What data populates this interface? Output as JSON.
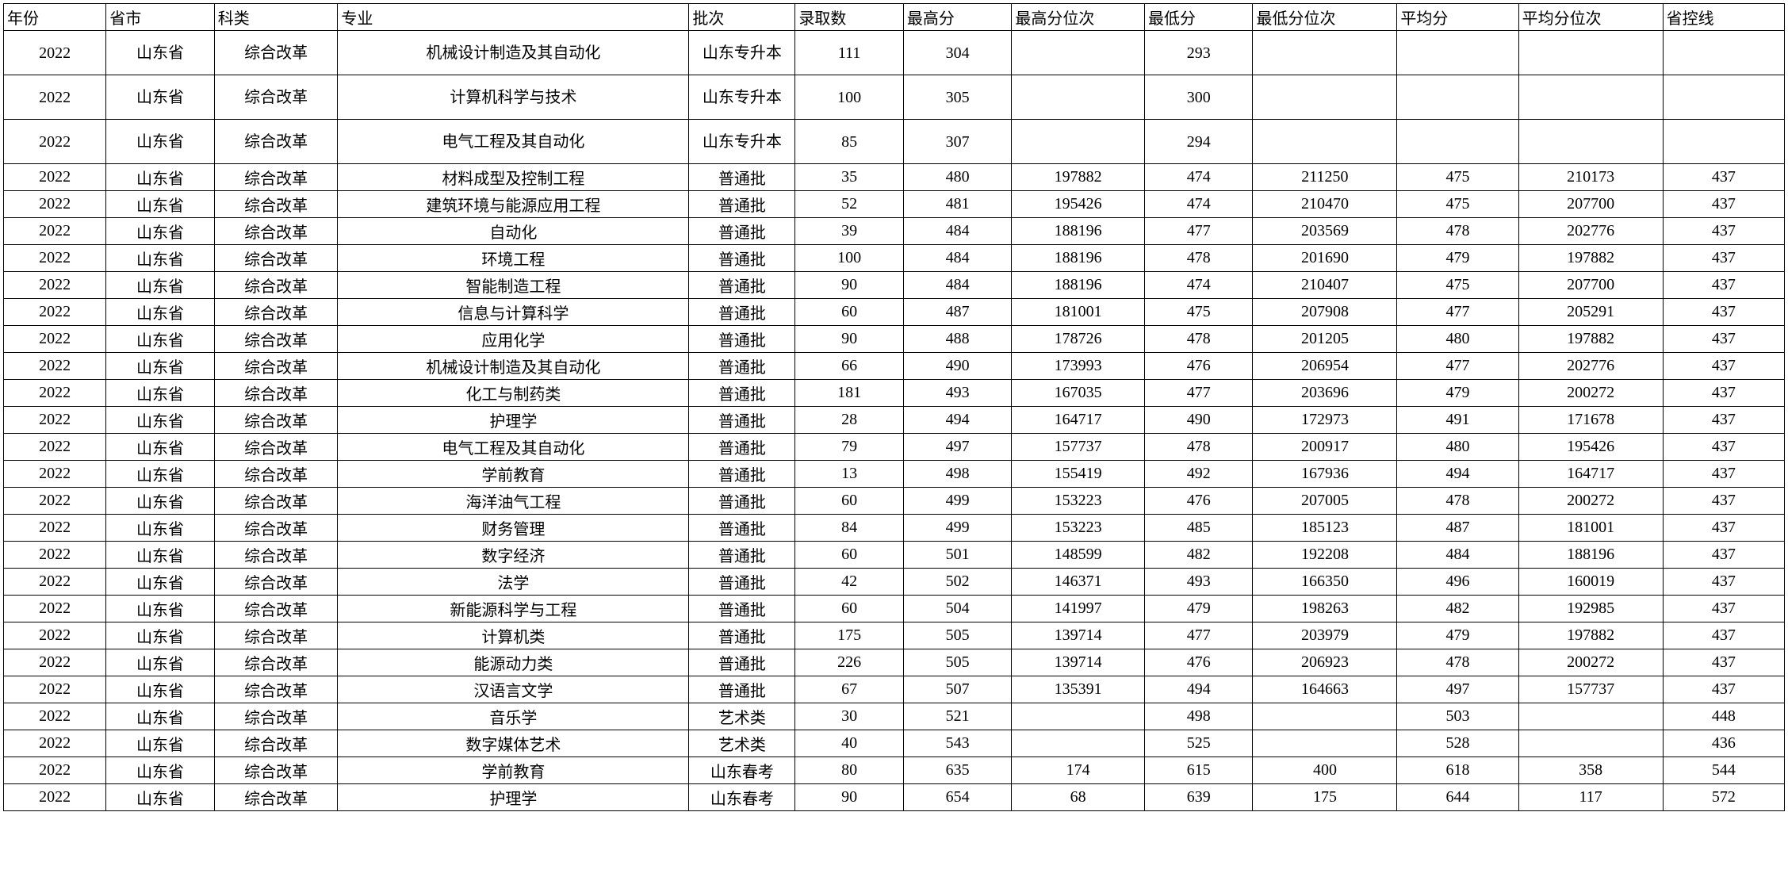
{
  "table": {
    "columns": [
      "年份",
      "省市",
      "科类",
      "专业",
      "批次",
      "录取数",
      "最高分",
      "最高分位次",
      "最低分",
      "最低分位次",
      "平均分",
      "平均分位次",
      "省控线"
    ],
    "column_classes": [
      "col-year",
      "col-prov",
      "col-cat",
      "col-major",
      "col-batch",
      "col-adm",
      "col-maxs",
      "col-maxr",
      "col-mins",
      "col-minr",
      "col-avgs",
      "col-avgr",
      "col-ctrl"
    ],
    "rows": [
      {
        "tall": true,
        "cells": [
          "2022",
          "山东省",
          "综合改革",
          "机械设计制造及其自动化",
          "山东专升本",
          "111",
          "304",
          "",
          "293",
          "",
          "",
          "",
          ""
        ]
      },
      {
        "tall": true,
        "cells": [
          "2022",
          "山东省",
          "综合改革",
          "计算机科学与技术",
          "山东专升本",
          "100",
          "305",
          "",
          "300",
          "",
          "",
          "",
          ""
        ]
      },
      {
        "tall": true,
        "cells": [
          "2022",
          "山东省",
          "综合改革",
          "电气工程及其自动化",
          "山东专升本",
          "85",
          "307",
          "",
          "294",
          "",
          "",
          "",
          ""
        ]
      },
      {
        "tall": false,
        "cells": [
          "2022",
          "山东省",
          "综合改革",
          "材料成型及控制工程",
          "普通批",
          "35",
          "480",
          "197882",
          "474",
          "211250",
          "475",
          "210173",
          "437"
        ]
      },
      {
        "tall": false,
        "cells": [
          "2022",
          "山东省",
          "综合改革",
          "建筑环境与能源应用工程",
          "普通批",
          "52",
          "481",
          "195426",
          "474",
          "210470",
          "475",
          "207700",
          "437"
        ]
      },
      {
        "tall": false,
        "cells": [
          "2022",
          "山东省",
          "综合改革",
          "自动化",
          "普通批",
          "39",
          "484",
          "188196",
          "477",
          "203569",
          "478",
          "202776",
          "437"
        ]
      },
      {
        "tall": false,
        "cells": [
          "2022",
          "山东省",
          "综合改革",
          "环境工程",
          "普通批",
          "100",
          "484",
          "188196",
          "478",
          "201690",
          "479",
          "197882",
          "437"
        ]
      },
      {
        "tall": false,
        "cells": [
          "2022",
          "山东省",
          "综合改革",
          "智能制造工程",
          "普通批",
          "90",
          "484",
          "188196",
          "474",
          "210407",
          "475",
          "207700",
          "437"
        ]
      },
      {
        "tall": false,
        "cells": [
          "2022",
          "山东省",
          "综合改革",
          "信息与计算科学",
          "普通批",
          "60",
          "487",
          "181001",
          "475",
          "207908",
          "477",
          "205291",
          "437"
        ]
      },
      {
        "tall": false,
        "cells": [
          "2022",
          "山东省",
          "综合改革",
          "应用化学",
          "普通批",
          "90",
          "488",
          "178726",
          "478",
          "201205",
          "480",
          "197882",
          "437"
        ]
      },
      {
        "tall": false,
        "cells": [
          "2022",
          "山东省",
          "综合改革",
          "机械设计制造及其自动化",
          "普通批",
          "66",
          "490",
          "173993",
          "476",
          "206954",
          "477",
          "202776",
          "437"
        ]
      },
      {
        "tall": false,
        "cells": [
          "2022",
          "山东省",
          "综合改革",
          "化工与制药类",
          "普通批",
          "181",
          "493",
          "167035",
          "477",
          "203696",
          "479",
          "200272",
          "437"
        ]
      },
      {
        "tall": false,
        "cells": [
          "2022",
          "山东省",
          "综合改革",
          "护理学",
          "普通批",
          "28",
          "494",
          "164717",
          "490",
          "172973",
          "491",
          "171678",
          "437"
        ]
      },
      {
        "tall": false,
        "cells": [
          "2022",
          "山东省",
          "综合改革",
          "电气工程及其自动化",
          "普通批",
          "79",
          "497",
          "157737",
          "478",
          "200917",
          "480",
          "195426",
          "437"
        ]
      },
      {
        "tall": false,
        "cells": [
          "2022",
          "山东省",
          "综合改革",
          "学前教育",
          "普通批",
          "13",
          "498",
          "155419",
          "492",
          "167936",
          "494",
          "164717",
          "437"
        ]
      },
      {
        "tall": false,
        "cells": [
          "2022",
          "山东省",
          "综合改革",
          "海洋油气工程",
          "普通批",
          "60",
          "499",
          "153223",
          "476",
          "207005",
          "478",
          "200272",
          "437"
        ]
      },
      {
        "tall": false,
        "cells": [
          "2022",
          "山东省",
          "综合改革",
          "财务管理",
          "普通批",
          "84",
          "499",
          "153223",
          "485",
          "185123",
          "487",
          "181001",
          "437"
        ]
      },
      {
        "tall": false,
        "cells": [
          "2022",
          "山东省",
          "综合改革",
          "数字经济",
          "普通批",
          "60",
          "501",
          "148599",
          "482",
          "192208",
          "484",
          "188196",
          "437"
        ]
      },
      {
        "tall": false,
        "cells": [
          "2022",
          "山东省",
          "综合改革",
          "法学",
          "普通批",
          "42",
          "502",
          "146371",
          "493",
          "166350",
          "496",
          "160019",
          "437"
        ]
      },
      {
        "tall": false,
        "cells": [
          "2022",
          "山东省",
          "综合改革",
          "新能源科学与工程",
          "普通批",
          "60",
          "504",
          "141997",
          "479",
          "198263",
          "482",
          "192985",
          "437"
        ]
      },
      {
        "tall": false,
        "cells": [
          "2022",
          "山东省",
          "综合改革",
          "计算机类",
          "普通批",
          "175",
          "505",
          "139714",
          "477",
          "203979",
          "479",
          "197882",
          "437"
        ]
      },
      {
        "tall": false,
        "cells": [
          "2022",
          "山东省",
          "综合改革",
          "能源动力类",
          "普通批",
          "226",
          "505",
          "139714",
          "476",
          "206923",
          "478",
          "200272",
          "437"
        ]
      },
      {
        "tall": false,
        "cells": [
          "2022",
          "山东省",
          "综合改革",
          "汉语言文学",
          "普通批",
          "67",
          "507",
          "135391",
          "494",
          "164663",
          "497",
          "157737",
          "437"
        ]
      },
      {
        "tall": false,
        "cells": [
          "2022",
          "山东省",
          "综合改革",
          "音乐学",
          "艺术类",
          "30",
          "521",
          "",
          "498",
          "",
          "503",
          "",
          "448"
        ]
      },
      {
        "tall": false,
        "cells": [
          "2022",
          "山东省",
          "综合改革",
          "数字媒体艺术",
          "艺术类",
          "40",
          "543",
          "",
          "525",
          "",
          "528",
          "",
          "436"
        ]
      },
      {
        "tall": false,
        "cells": [
          "2022",
          "山东省",
          "综合改革",
          "学前教育",
          "山东春考",
          "80",
          "635",
          "174",
          "615",
          "400",
          "618",
          "358",
          "544"
        ]
      },
      {
        "tall": false,
        "cells": [
          "2022",
          "山东省",
          "综合改革",
          "护理学",
          "山东春考",
          "90",
          "654",
          "68",
          "639",
          "175",
          "644",
          "117",
          "572"
        ]
      }
    ]
  }
}
